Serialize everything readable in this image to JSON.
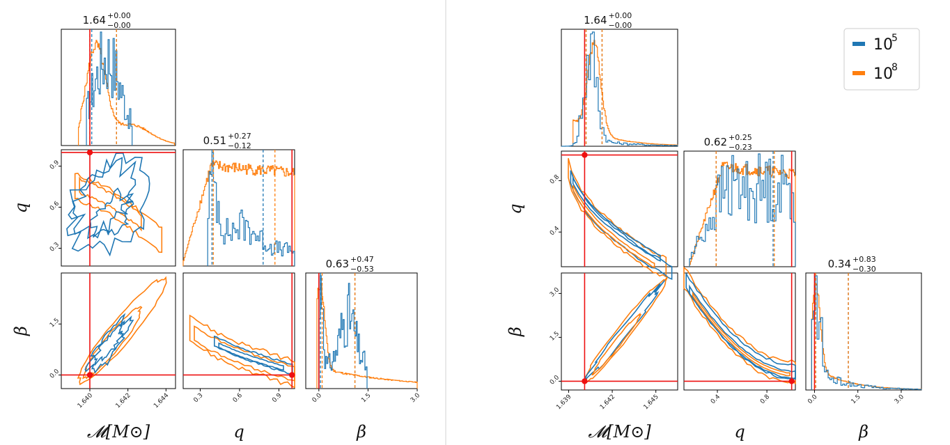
{
  "colors": {
    "series_1": "#1f77b4",
    "series_2": "#ff7f0e",
    "truth": "#ee1111",
    "frame": "#000000",
    "divider": "#d0d0d0"
  },
  "legend": [
    {
      "base": "10",
      "exp": "5",
      "color": "#1f77b4"
    },
    {
      "base": "10",
      "exp": "8",
      "color": "#ff7f0e"
    }
  ],
  "chart_data": [
    {
      "type": "corner",
      "params": [
        "𝓜[M⊙]",
        "q",
        "β"
      ],
      "truth": {
        "chirp_mass": 1.64,
        "q": 1.0,
        "beta": 0.0
      },
      "chirp_mass": {
        "title": {
          "value": "1.64",
          "plus": "+0.00",
          "minus": "−0.00"
        },
        "range": [
          1.6385,
          1.6445
        ],
        "ticks": [
          "1.640",
          "1.642",
          "1.644"
        ],
        "tick_values": [
          1.64,
          1.642,
          1.644
        ]
      },
      "q": {
        "title": {
          "value": "0.51",
          "plus": "+0.27",
          "minus": "−0.12"
        },
        "range": [
          0.17,
          1.02
        ],
        "ticks_y": [
          "0.9",
          "0.6",
          "0.3"
        ],
        "tick_values_y": [
          0.9,
          0.6,
          0.3
        ],
        "ticks_x": [
          "0.3",
          "0.6",
          "0.9"
        ],
        "tick_values_x": [
          0.3,
          0.6,
          0.9
        ]
      },
      "beta": {
        "title": {
          "value": "0.63",
          "plus": "+0.47",
          "minus": "−0.53"
        },
        "range": [
          -0.4,
          3.0
        ],
        "ticks_y": [
          "1.5",
          "0.0"
        ],
        "tick_values_y": [
          1.5,
          0.0
        ],
        "ticks_x": [
          "0.0",
          "1.5",
          "3.0"
        ],
        "tick_values_x": [
          0.0,
          1.5,
          3.0
        ]
      },
      "quantiles": {
        "series_1": {
          "chirp_mass": [
            1.6401,
            1.6414
          ],
          "q": [
            0.39,
            0.78
          ],
          "beta": [
            0.05,
            1.1
          ]
        },
        "series_2": {
          "chirp_mass": [
            1.64,
            1.6414
          ],
          "q": [
            0.4,
            0.87
          ],
          "beta": [
            0.1,
            1.1
          ]
        }
      }
    },
    {
      "type": "corner",
      "params": [
        "𝓜[M⊙]",
        "q",
        "β"
      ],
      "truth": {
        "chirp_mass": 1.6401,
        "q": 1.0,
        "beta": 0.0
      },
      "chirp_mass": {
        "title": {
          "value": "1.64",
          "plus": "+0.00",
          "minus": "−0.00"
        },
        "range": [
          1.6385,
          1.6465
        ],
        "ticks": [
          "1.639",
          "1.642",
          "1.645"
        ],
        "tick_values": [
          1.639,
          1.642,
          1.645
        ]
      },
      "q": {
        "title": {
          "value": "0.62",
          "plus": "+0.25",
          "minus": "−0.23"
        },
        "range": [
          0.13,
          1.03
        ],
        "ticks_y": [
          "0.8",
          "0.4"
        ],
        "tick_values_y": [
          0.8,
          0.4
        ],
        "ticks_x": [
          "0.4",
          "0.8"
        ],
        "tick_values_x": [
          0.4,
          0.8
        ]
      },
      "beta": {
        "title": {
          "value": "0.34",
          "plus": "+0.83",
          "minus": "−0.30"
        },
        "range": [
          -0.3,
          3.7
        ],
        "ticks_y": [
          "3.0",
          "1.5",
          "0.0"
        ],
        "tick_values_y": [
          3.0,
          1.5,
          0.0
        ],
        "ticks_x": [
          "0.0",
          "1.5",
          "3.0"
        ],
        "tick_values_x": [
          0.0,
          1.5,
          3.0
        ]
      },
      "quantiles": {
        "series_1": {
          "chirp_mass": [
            1.6402,
            1.6413
          ],
          "q": [
            0.39,
            0.85
          ],
          "beta": [
            0.04,
            1.17
          ]
        },
        "series_2": {
          "chirp_mass": [
            1.6402,
            1.6413
          ],
          "q": [
            0.39,
            0.86
          ],
          "beta": [
            0.04,
            1.17
          ]
        }
      }
    }
  ]
}
